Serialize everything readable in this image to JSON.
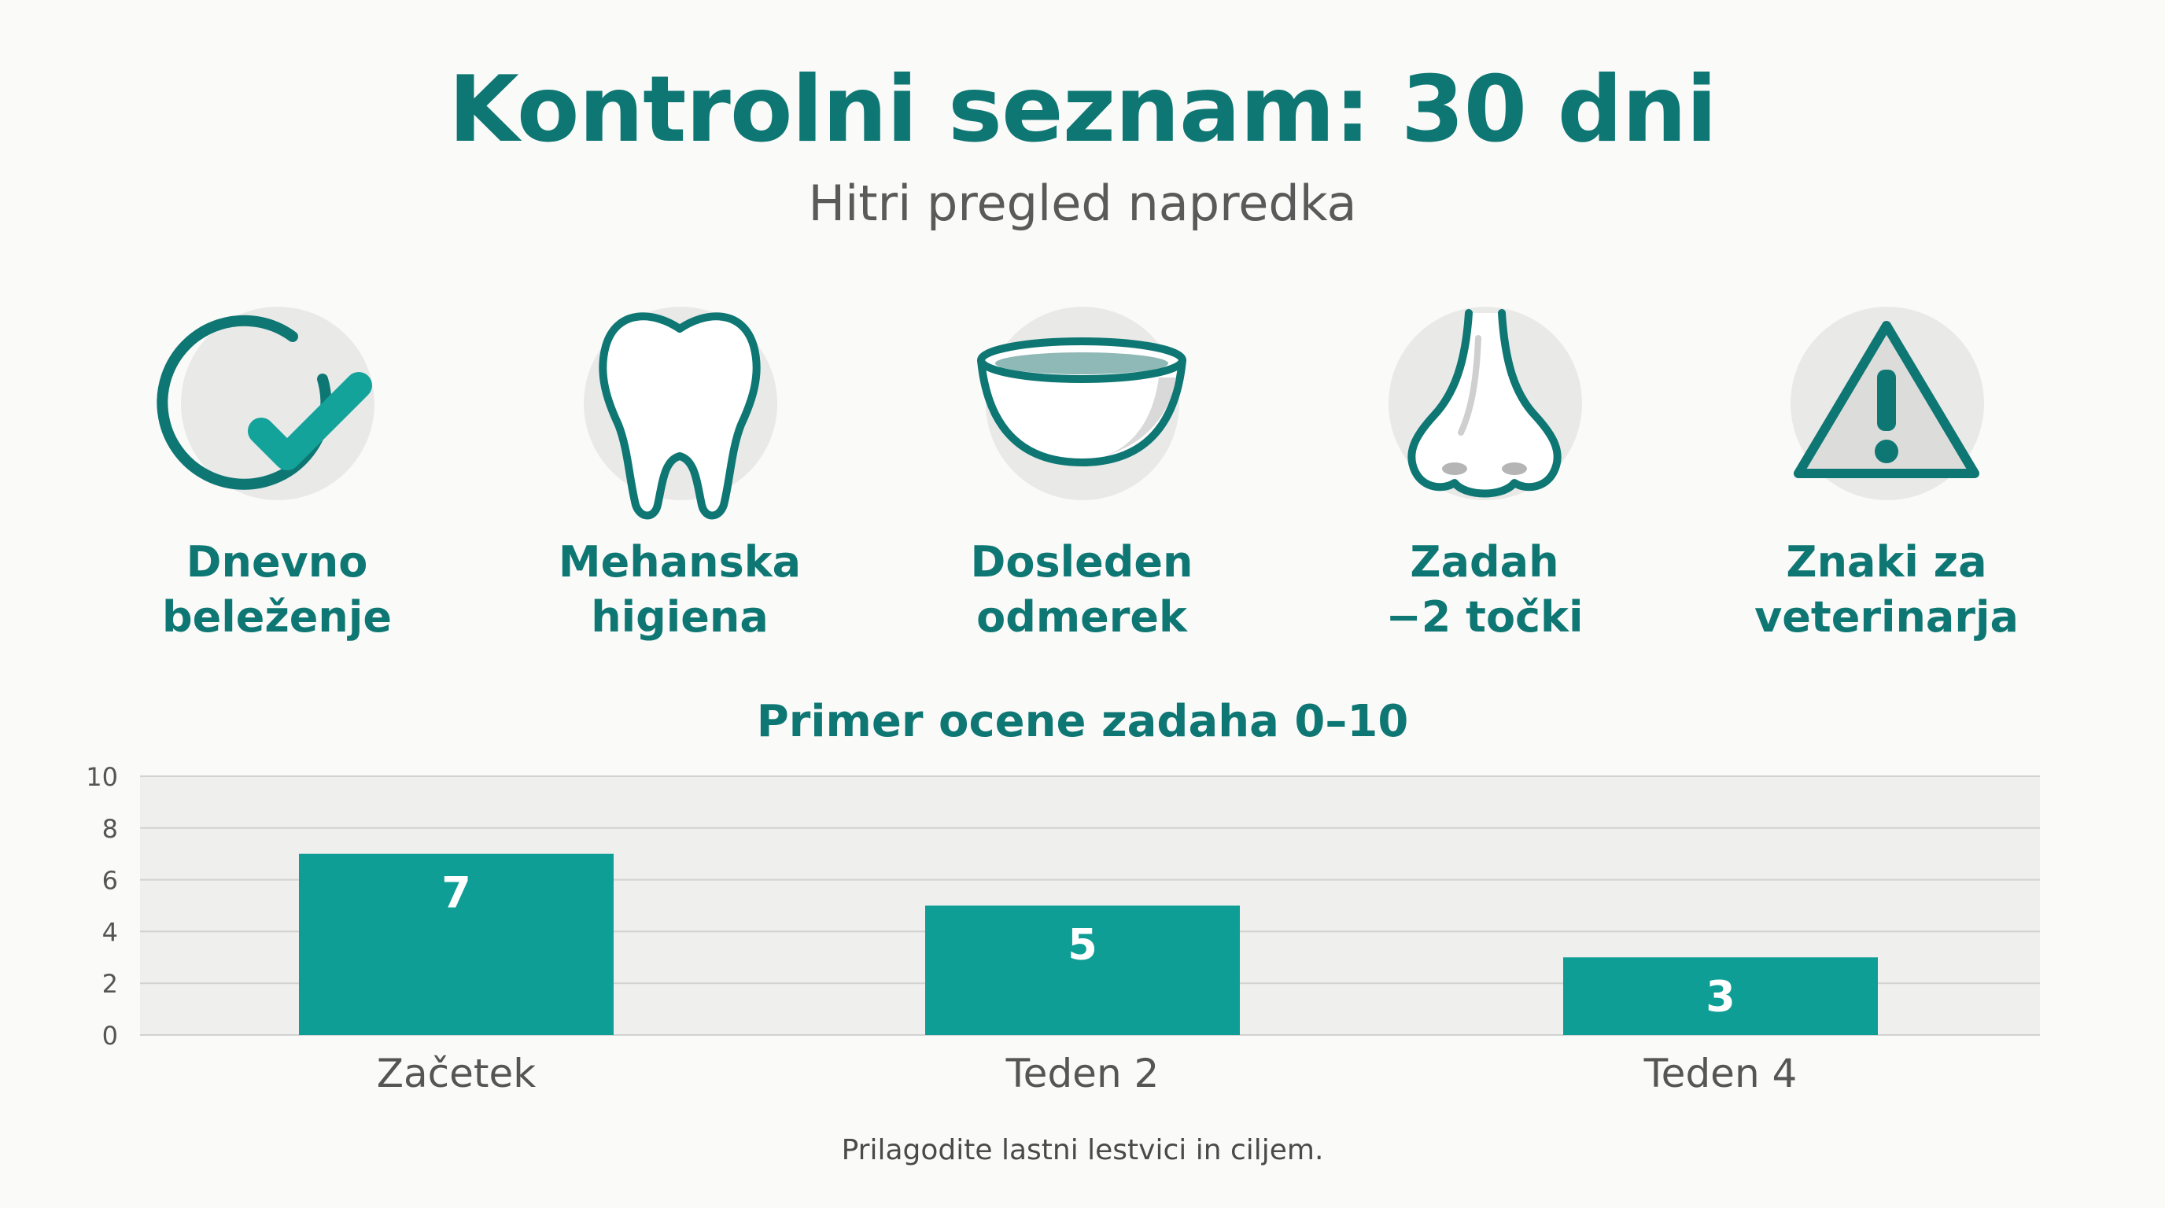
{
  "header": {
    "title": "Kontrolni seznam: 30 dni",
    "subtitle": "Hitri pregled napredka"
  },
  "checklist": [
    {
      "icon": "checkmark-circle-icon",
      "line1": "Dnevno",
      "line2": "beleženje"
    },
    {
      "icon": "tooth-icon",
      "line1": "Mehanska",
      "line2": "higiena"
    },
    {
      "icon": "bowl-icon",
      "line1": "Dosleden",
      "line2": "odmerek"
    },
    {
      "icon": "nose-icon",
      "line1": "Zadah",
      "line2": "−2 točki"
    },
    {
      "icon": "warning-triangle-icon",
      "line1": "Znaki za",
      "line2": "veterinarja"
    }
  ],
  "colors": {
    "accent": "#0e7773",
    "bar": "#0e9e96",
    "icon_bg": "#e9e9e8",
    "plot_bg": "#efefee"
  },
  "chart_data": {
    "type": "bar",
    "title": "Primer ocene zadaha 0–10",
    "categories": [
      "Začetek",
      "Teden 2",
      "Teden 4"
    ],
    "values": [
      7,
      5,
      3
    ],
    "data_labels": [
      "7",
      "5",
      "3"
    ],
    "ylim": [
      0,
      10
    ],
    "yticks": [
      0,
      2,
      4,
      6,
      8,
      10
    ],
    "grid": true,
    "legend": "none"
  },
  "footnote": "Prilagodite lastni lestvici in ciljem."
}
